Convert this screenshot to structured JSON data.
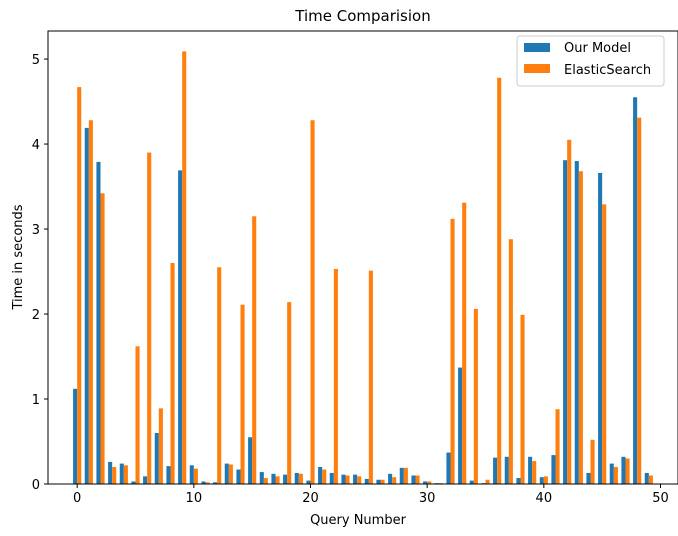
{
  "chart_data": {
    "type": "bar",
    "title": "Time Comparision",
    "xlabel": "Query Number",
    "ylabel": "Time in seconds",
    "xlim": [
      -2.5,
      51.5
    ],
    "ylim": [
      0,
      5.33
    ],
    "xticks": [
      0,
      10,
      20,
      30,
      40,
      50
    ],
    "yticks": [
      0,
      1,
      2,
      3,
      4,
      5
    ],
    "legend_position": "top-right",
    "x": [
      0,
      1,
      2,
      3,
      4,
      5,
      6,
      7,
      8,
      9,
      10,
      11,
      12,
      13,
      14,
      15,
      16,
      17,
      18,
      19,
      20,
      21,
      22,
      23,
      24,
      25,
      26,
      27,
      28,
      29,
      30,
      31,
      32,
      33,
      34,
      35,
      36,
      37,
      38,
      39,
      40,
      41,
      42,
      43,
      44,
      45,
      46,
      47,
      48,
      49
    ],
    "series": [
      {
        "name": "Our Model",
        "color": "#1f77b4",
        "values": [
          1.12,
          4.19,
          3.79,
          0.26,
          0.24,
          0.03,
          0.09,
          0.6,
          0.21,
          3.69,
          0.22,
          0.03,
          0.02,
          0.24,
          0.17,
          0.55,
          0.14,
          0.12,
          0.11,
          0.13,
          0.04,
          0.2,
          0.13,
          0.11,
          0.11,
          0.06,
          0.05,
          0.12,
          0.19,
          0.1,
          0.03,
          0.01,
          0.37,
          1.37,
          0.04,
          0.01,
          0.31,
          0.32,
          0.07,
          0.32,
          0.08,
          0.34,
          3.81,
          3.8,
          0.13,
          3.66,
          0.24,
          0.32,
          4.55,
          0.13
        ]
      },
      {
        "name": "ElasticSearch",
        "color": "#ff7f0e",
        "values": [
          4.67,
          4.28,
          3.42,
          0.2,
          0.22,
          1.62,
          3.9,
          0.89,
          2.6,
          5.09,
          0.18,
          0.02,
          2.55,
          0.23,
          2.11,
          3.15,
          0.07,
          0.09,
          2.14,
          0.12,
          4.28,
          0.17,
          2.53,
          0.1,
          0.09,
          2.51,
          0.05,
          0.08,
          0.19,
          0.1,
          0.03,
          0.01,
          3.12,
          3.31,
          2.06,
          0.05,
          4.78,
          2.88,
          1.99,
          0.27,
          0.09,
          0.88,
          4.05,
          3.68,
          0.52,
          3.29,
          0.2,
          0.3,
          4.31,
          0.1
        ]
      }
    ]
  }
}
